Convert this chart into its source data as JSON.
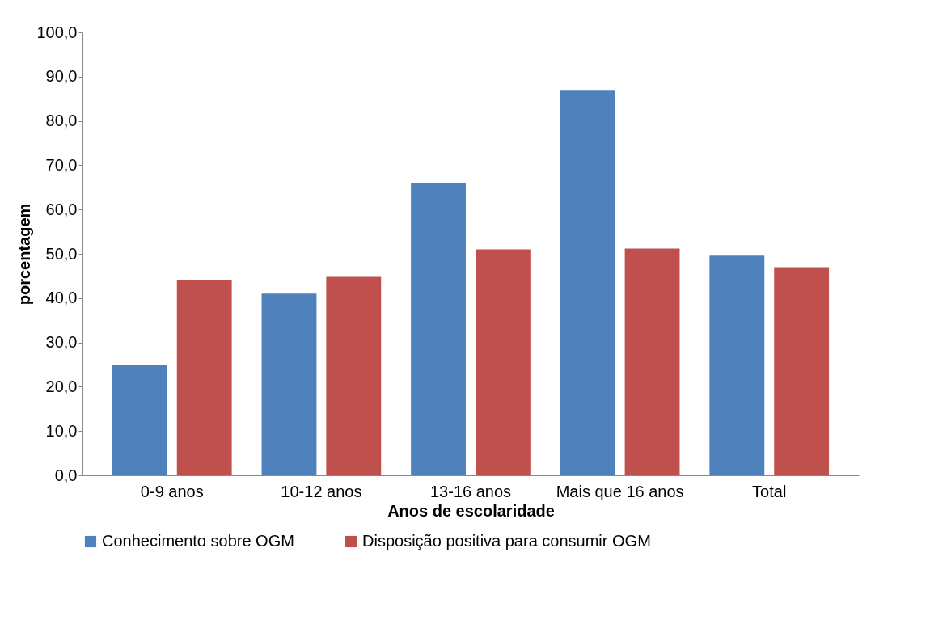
{
  "chart_data": {
    "type": "bar",
    "xlabel": "Anos de escolaridade",
    "ylabel": "porcentagem",
    "categories": [
      "0-9 anos",
      "10-12 anos",
      "13-16 anos",
      "Mais que 16 anos",
      "Total"
    ],
    "series": [
      {
        "name": "Conhecimento sobre OGM",
        "color": "#4f81bd",
        "values": [
          25,
          41,
          66,
          87,
          49.6
        ]
      },
      {
        "name": "Disposição positiva para consumir OGM",
        "color": "#c0504d",
        "values": [
          44,
          44.8,
          51,
          51.2,
          47
        ]
      }
    ],
    "ylim": [
      0,
      100
    ],
    "yticks": [
      {
        "value": 0,
        "label": "0,0"
      },
      {
        "value": 10,
        "label": "10,0"
      },
      {
        "value": 20,
        "label": "20,0"
      },
      {
        "value": 30,
        "label": "30,0"
      },
      {
        "value": 40,
        "label": "40,0"
      },
      {
        "value": 50,
        "label": "50,0"
      },
      {
        "value": 60,
        "label": "60,0"
      },
      {
        "value": 70,
        "label": "70,0"
      },
      {
        "value": 80,
        "label": "80,0"
      },
      {
        "value": 90,
        "label": "90,0"
      },
      {
        "value": 100,
        "label": "100,0"
      }
    ],
    "grid": false,
    "legend": "bottom"
  }
}
